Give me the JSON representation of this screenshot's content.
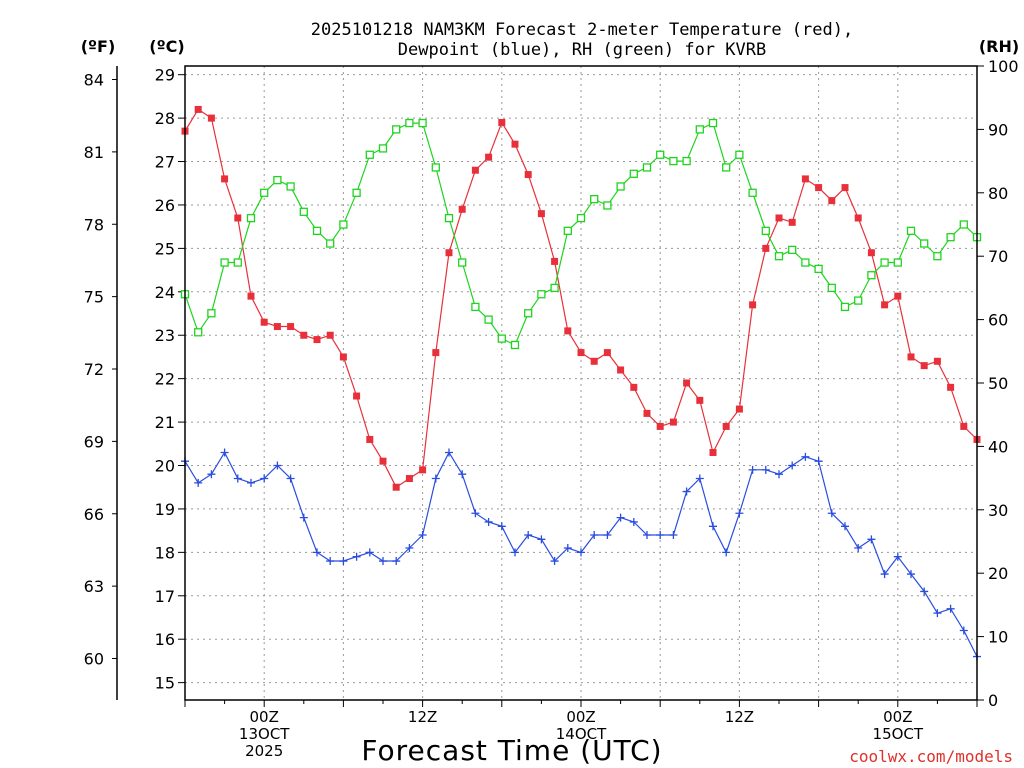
{
  "chart_data": {
    "type": "line",
    "title_line1": "2025101218 NAM3KM Forecast 2-meter Temperature (red),",
    "title_line2": "Dewpoint (blue), RH (green) for KVRB",
    "unit_f": "(ºF)",
    "unit_c": "(ºC)",
    "unit_rh": "(RH)",
    "xlabel": "Forecast Time (UTC)",
    "credit": "coolwx.com/models",
    "x_range_hours": [
      0,
      60
    ],
    "temp_c_range": [
      14.6,
      29.2
    ],
    "rh_range": [
      0,
      100
    ],
    "f_ticks": [
      "84",
      "81",
      "78",
      "75",
      "72",
      "69",
      "66",
      "63",
      "60"
    ],
    "c_ticks": [
      "29",
      "28",
      "27",
      "26",
      "25",
      "24",
      "23",
      "22",
      "21",
      "20",
      "19",
      "18",
      "17",
      "16",
      "15"
    ],
    "rh_ticks": [
      "100",
      "90",
      "80",
      "70",
      "60",
      "50",
      "40",
      "30",
      "20",
      "10",
      "0"
    ],
    "x_ticks": [
      {
        "hour": 6,
        "line1": "00Z",
        "line2": "13OCT",
        "line3": "2025"
      },
      {
        "hour": 18,
        "line1": "12Z",
        "line2": "",
        "line3": ""
      },
      {
        "hour": 30,
        "line1": "00Z",
        "line2": "14OCT",
        "line3": ""
      },
      {
        "hour": 42,
        "line1": "12Z",
        "line2": "",
        "line3": ""
      },
      {
        "hour": 54,
        "line1": "00Z",
        "line2": "15OCT",
        "line3": ""
      }
    ],
    "series": [
      {
        "name": "2-meter Temperature",
        "units": "C",
        "color": "#e8303a",
        "marker": "filled-square",
        "values": [
          27.7,
          28.2,
          28.0,
          26.6,
          25.7,
          23.9,
          23.3,
          23.2,
          23.2,
          23.0,
          22.9,
          23.0,
          22.5,
          21.6,
          20.6,
          20.1,
          19.5,
          19.7,
          19.9,
          22.6,
          24.9,
          25.9,
          26.8,
          27.1,
          27.9,
          27.4,
          26.7,
          25.8,
          24.7,
          23.1,
          22.6,
          22.4,
          22.6,
          22.2,
          21.8,
          21.2,
          20.9,
          21.0,
          21.9,
          21.5,
          20.3,
          20.9,
          21.3,
          23.7,
          25.0,
          25.7,
          25.6,
          26.6,
          26.4,
          26.1,
          26.4,
          25.7,
          24.9,
          23.7,
          23.9,
          22.5,
          22.3,
          22.4,
          21.8,
          20.9,
          20.6
        ]
      },
      {
        "name": "Dewpoint",
        "units": "C",
        "color": "#2a4de0",
        "marker": "plus",
        "values": [
          20.1,
          19.6,
          19.8,
          20.3,
          19.7,
          19.6,
          19.7,
          20.0,
          19.7,
          18.8,
          18.0,
          17.8,
          17.8,
          17.9,
          18.0,
          17.8,
          17.8,
          18.1,
          18.4,
          19.7,
          20.3,
          19.8,
          18.9,
          18.7,
          18.6,
          18.0,
          18.4,
          18.3,
          17.8,
          18.1,
          18.0,
          18.4,
          18.4,
          18.8,
          18.7,
          18.4,
          18.4,
          18.4,
          19.4,
          19.7,
          18.6,
          18.0,
          18.9,
          19.9,
          19.9,
          19.8,
          20.0,
          20.2,
          20.1,
          18.9,
          18.6,
          18.1,
          18.3,
          17.5,
          17.9,
          17.5,
          17.1,
          16.6,
          16.7,
          16.2,
          15.6
        ]
      },
      {
        "name": "RH",
        "units": "%",
        "color": "#1fd41f",
        "marker": "open-square",
        "values": [
          64,
          58,
          61,
          69,
          69,
          76,
          80,
          82,
          81,
          77,
          74,
          72,
          75,
          80,
          86,
          87,
          90,
          91,
          91,
          84,
          76,
          69,
          62,
          60,
          57,
          56,
          61,
          64,
          65,
          74,
          76,
          79,
          78,
          81,
          83,
          84,
          86,
          85,
          85,
          90,
          91,
          84,
          86,
          80,
          74,
          70,
          71,
          69,
          68,
          65,
          62,
          63,
          67,
          69,
          69,
          74,
          72,
          70,
          73,
          75,
          73
        ]
      }
    ]
  }
}
